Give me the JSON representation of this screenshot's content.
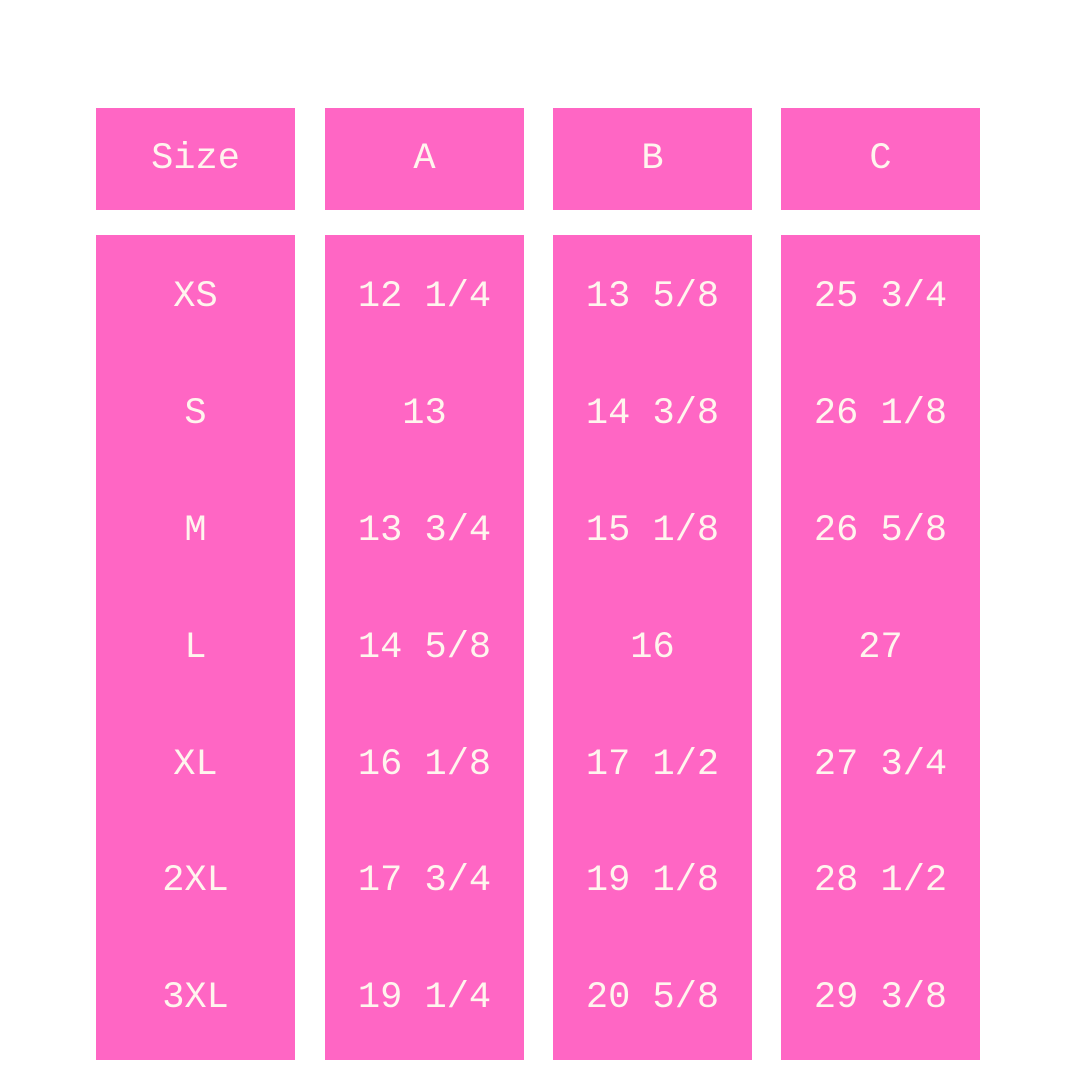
{
  "colors": {
    "accent": "#FF66C4",
    "text": "#FFF5EE",
    "background": "#FFFFFF"
  },
  "table": {
    "headers": [
      "Size",
      "A",
      "B",
      "C"
    ],
    "columns": [
      [
        "XS",
        "S",
        "M",
        "L",
        "XL",
        "2XL",
        "3XL"
      ],
      [
        "12 1/4",
        "13",
        "13 3/4",
        "14 5/8",
        "16 1/8",
        "17 3/4",
        "19 1/4"
      ],
      [
        "13 5/8",
        "14 3/8",
        "15 1/8",
        "16",
        "17 1/2",
        "19 1/8",
        "20 5/8"
      ],
      [
        "25 3/4",
        "26 1/8",
        "26 5/8",
        "27",
        "27 3/4",
        "28 1/2",
        "29 3/8"
      ]
    ]
  }
}
